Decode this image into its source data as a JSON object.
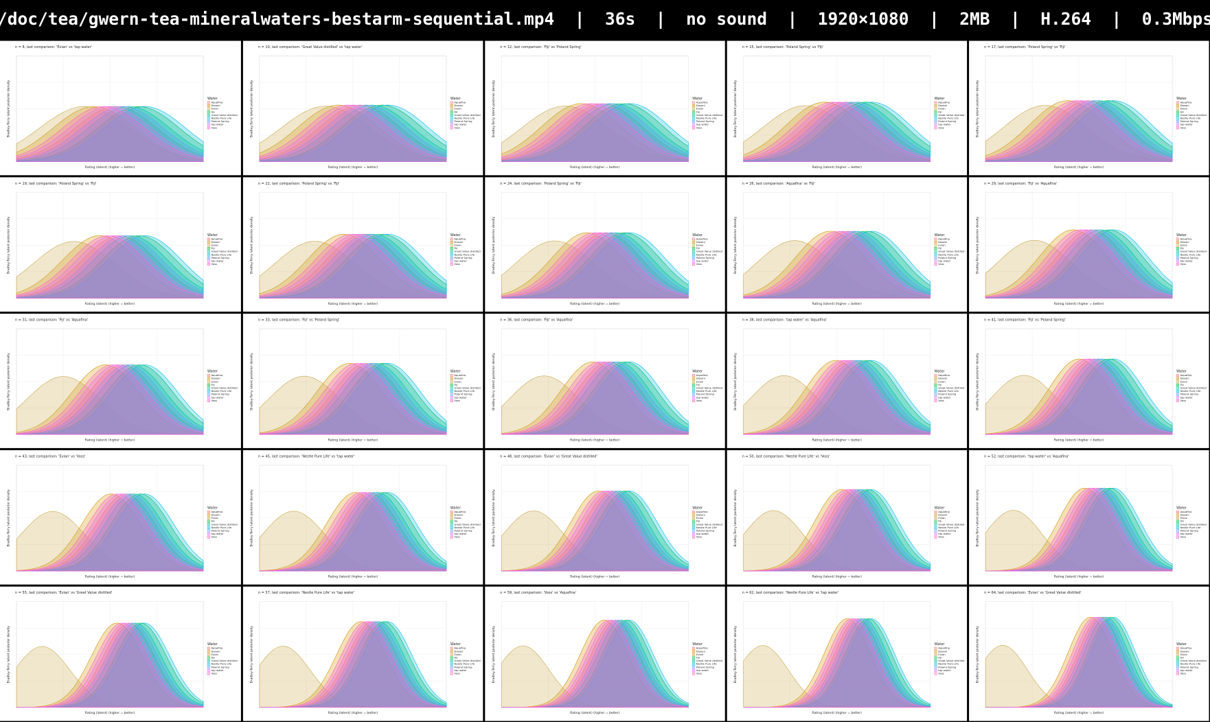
{
  "header": {
    "text": "/doc/tea/gwern-tea-mineralwaters-bestarm-sequential.mp4  |  36s  |  no sound  |  1920×1080  |  2MB  |  H.264  |  0.3Mbps"
  },
  "x_label": "Rating (latent) (higher = better)",
  "y_label": "Bradley-Terry latent posterior density",
  "legend": {
    "title": "Water",
    "items": [
      {
        "name": "Aquafina",
        "color": "#F8766D"
      },
      {
        "name": "Dasani",
        "color": "#D39200"
      },
      {
        "name": "Evian",
        "color": "#C8A84B"
      },
      {
        "name": "Fiji",
        "color": "#00BA38"
      },
      {
        "name": "Great Value distilled",
        "color": "#00C19F"
      },
      {
        "name": "Nestle Pure Life",
        "color": "#00B9E3"
      },
      {
        "name": "Poland Spring",
        "color": "#619CFF"
      },
      {
        "name": "tap water",
        "color": "#DB72FB"
      },
      {
        "name": "Voss",
        "color": "#FF61C3"
      }
    ]
  },
  "frames": [
    {
      "title": "n = 8, last comparison: 'Evian' vs 'tap water'"
    },
    {
      "title": "n = 10, last comparison: 'Great Value distilled' vs 'tap water'"
    },
    {
      "title": "n = 12, last comparison: 'Fiji' vs 'Poland Spring'"
    },
    {
      "title": "n = 15, last comparison: 'Poland Spring' vs 'Fiji'"
    },
    {
      "title": "n = 17, last comparison: 'Poland Spring' vs 'Fiji'"
    },
    {
      "title": "n = 19, last comparison: 'Poland Spring' vs 'Fiji'"
    },
    {
      "title": "n = 22, last comparison: 'Poland Spring' vs 'Fiji'"
    },
    {
      "title": "n = 24, last comparison: 'Poland Spring' vs 'Fiji'"
    },
    {
      "title": "n = 26, last comparison: 'Aquafina' vs 'Fiji'"
    },
    {
      "title": "n = 29, last comparison: 'Fiji' vs 'Aquafina'"
    },
    {
      "title": "n = 31, last comparison: 'Fiji' vs 'Aquafina'"
    },
    {
      "title": "n = 33, last comparison: 'Fiji' vs 'Poland Spring'"
    },
    {
      "title": "n = 36, last comparison: 'Fiji' vs 'Aquafina'"
    },
    {
      "title": "n = 38, last comparison: 'tap water' vs 'Aquafina'"
    },
    {
      "title": "n = 41, last comparison: 'Fiji' vs 'Poland Spring'"
    },
    {
      "title": "n = 43, last comparison: 'Evian' vs 'Voss'"
    },
    {
      "title": "n = 45, last comparison: 'Nestle Pure Life' vs 'tap water'"
    },
    {
      "title": "n = 48, last comparison: 'Evian' vs 'Great Value distilled'"
    },
    {
      "title": "n = 50, last comparison: 'Nestle Pure Life' vs 'Voss'"
    },
    {
      "title": "n = 52, last comparison: 'tap water' vs 'Aquafina'"
    },
    {
      "title": "n = 55, last comparison: 'Evian' vs 'Great Value distilled'"
    },
    {
      "title": "n = 57, last comparison: 'Nestle Pure Life' vs 'tap water'"
    },
    {
      "title": "n = 59, last comparison: 'Voss' vs 'Aquafina'"
    },
    {
      "title": "n = 62, last comparison: 'Nestle Pure Life' vs 'tap water'"
    },
    {
      "title": "n = 64, last comparison: 'Evian' vs 'Great Value distilled'"
    }
  ]
}
